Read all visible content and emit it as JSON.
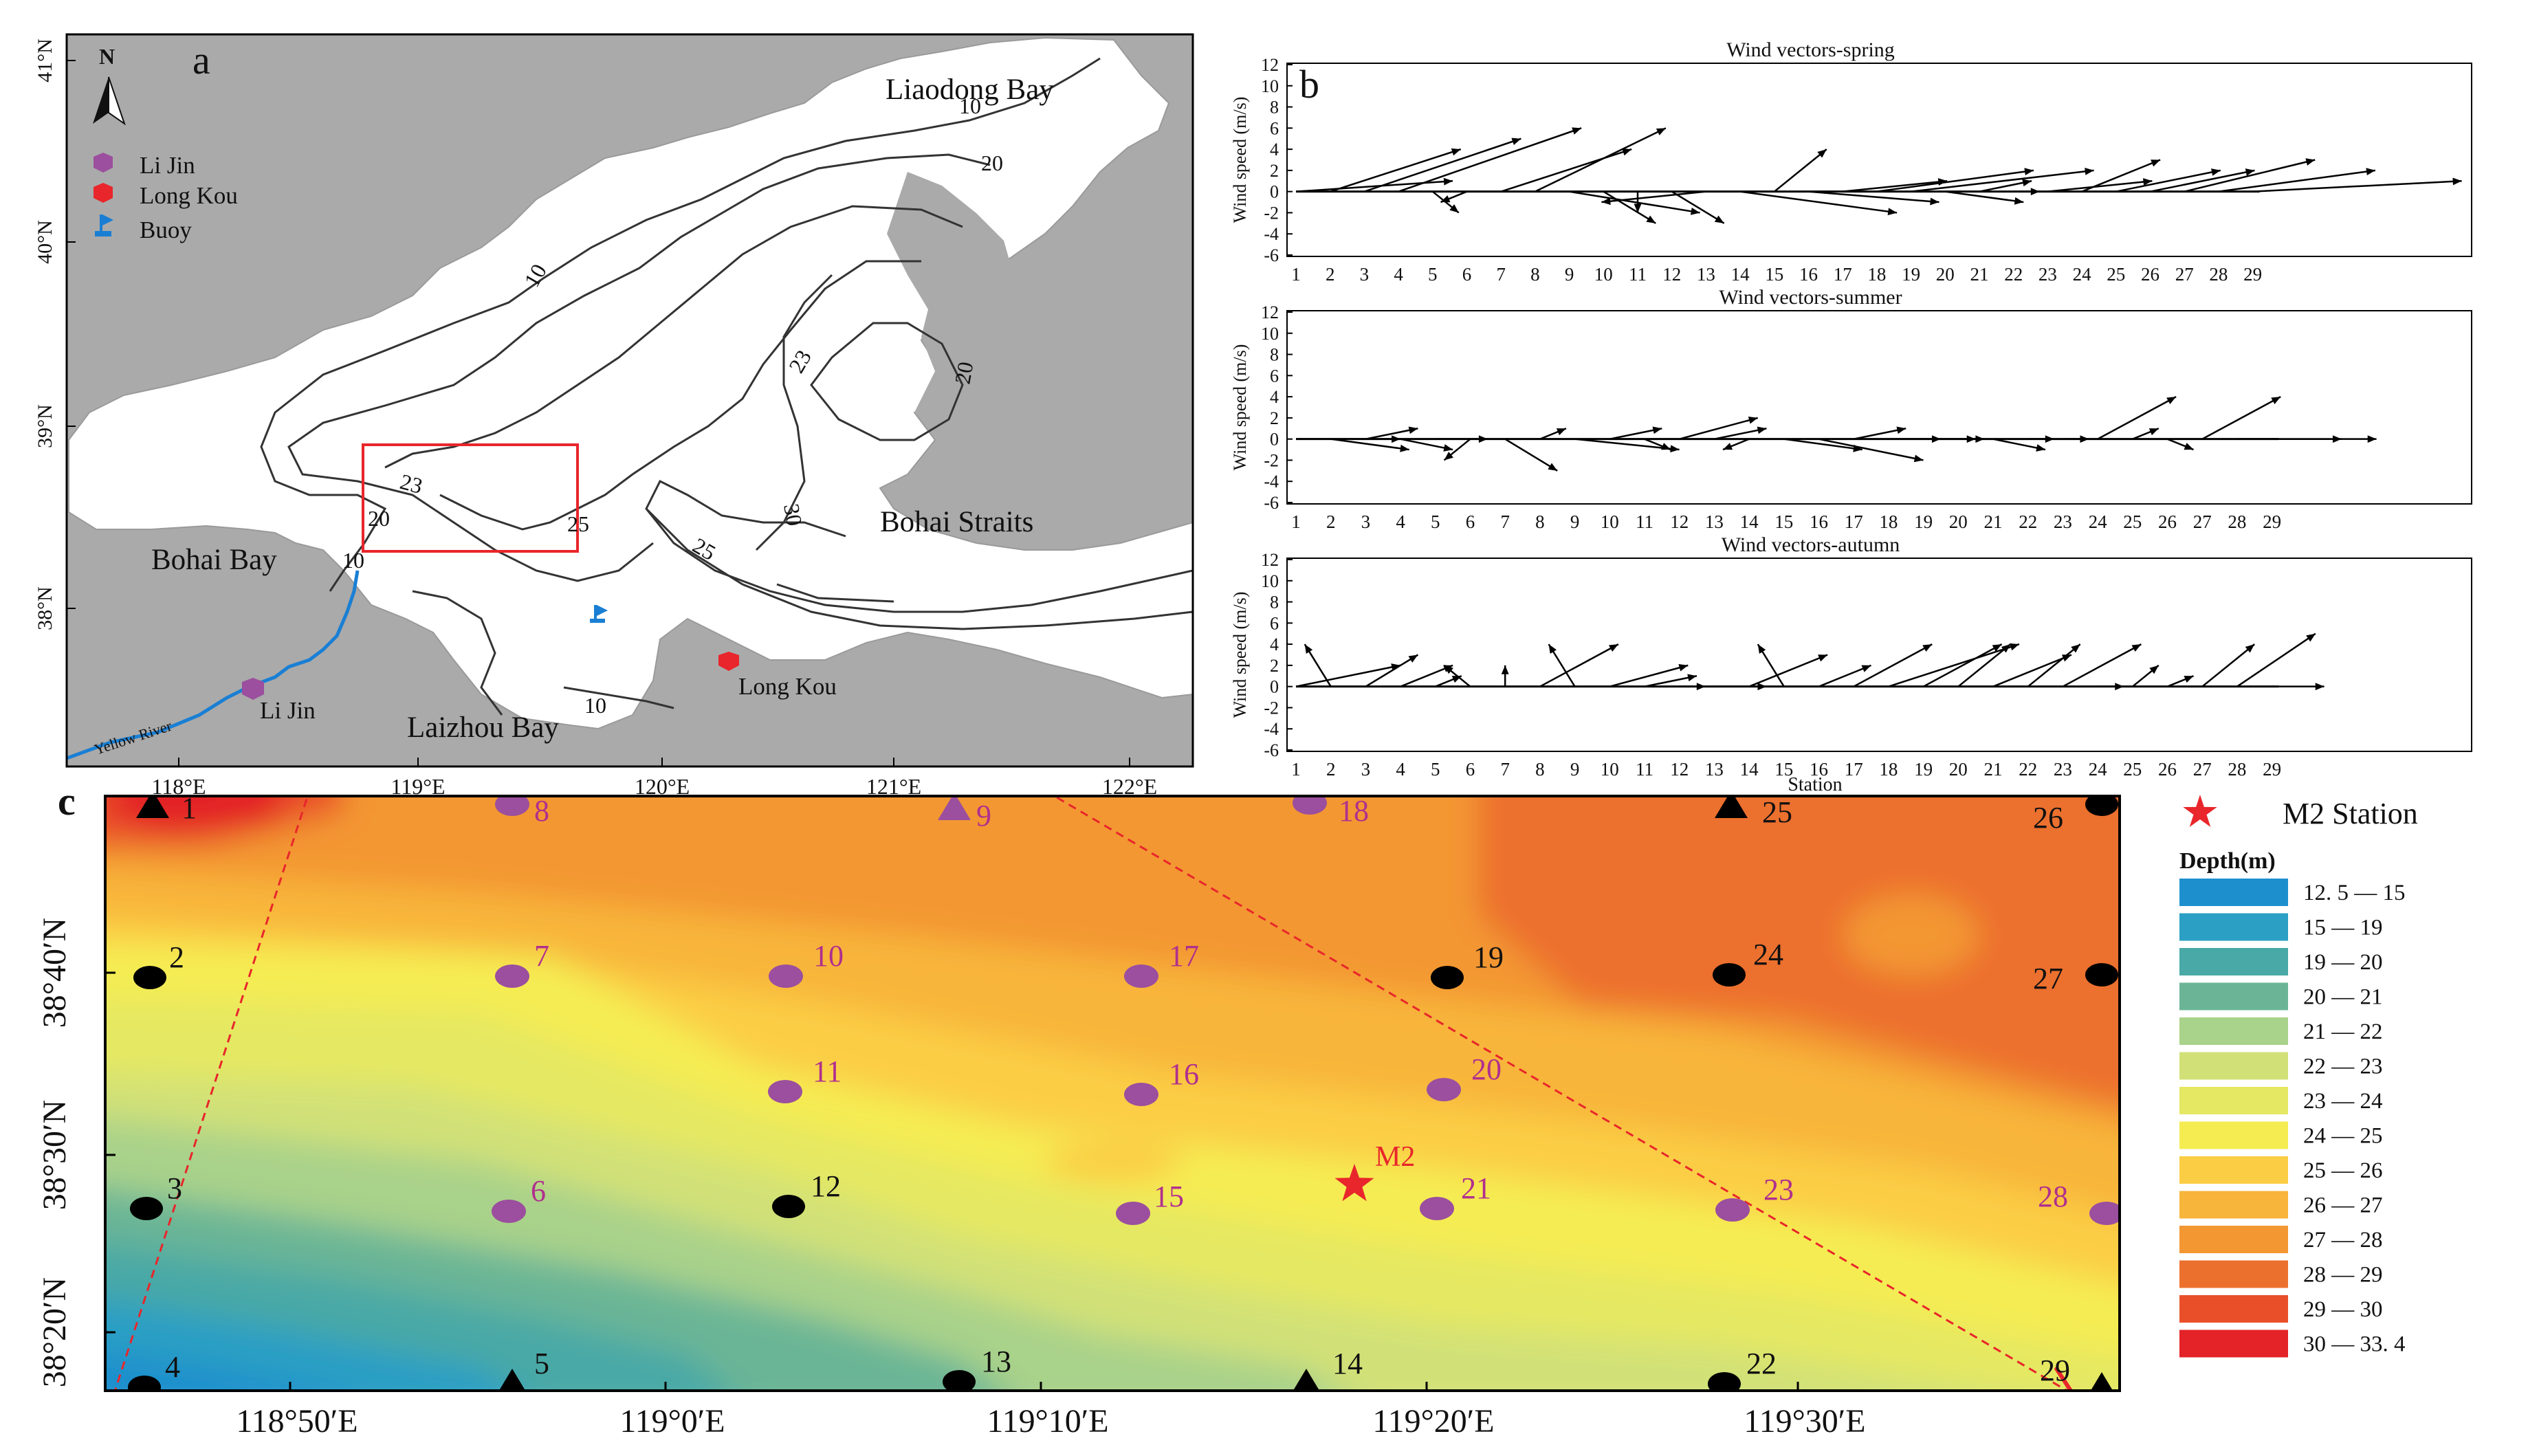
{
  "panel_a": {
    "label": "a",
    "north": "N",
    "places": {
      "liaodong": "Liaodong Bay",
      "bohai_bay": "Bohai Bay",
      "bohai_straits": "Bohai Straits",
      "laizhou": "Laizhou Bay",
      "li_jin": "Li Jin",
      "long_kou": "Long Kou",
      "yellow_river": "Yellow River"
    },
    "legend": {
      "li_jin": "Li Jin",
      "long_kou": "Long Kou",
      "buoy": "Buoy"
    },
    "lat_labels": [
      "41°N",
      "40°N",
      "39°N",
      "38°N"
    ],
    "lon_labels": [
      "118°E",
      "119°E",
      "120°E",
      "121°E",
      "122°E"
    ],
    "contour_labels": [
      "10",
      "20",
      "10",
      "23",
      "20",
      "30",
      "23",
      "20",
      "25",
      "25",
      "10",
      "10"
    ],
    "colors": {
      "land": "#aaaaaa",
      "sea": "#ffffff",
      "box": "#e8262b",
      "li_jin": "#9b4f9e",
      "long_kou": "#e8262b",
      "buoy": "#1a7fd4"
    }
  },
  "panel_b": {
    "label": "b",
    "ylabel": "Wind speed (m/s)",
    "xlabel": "Station",
    "y_ticks": [
      "12",
      "10",
      "8",
      "6",
      "4",
      "2",
      "0",
      "-2",
      "-4",
      "-6"
    ],
    "x_ticks": [
      "1",
      "2",
      "3",
      "4",
      "5",
      "6",
      "7",
      "8",
      "9",
      "10",
      "11",
      "12",
      "13",
      "14",
      "15",
      "16",
      "17",
      "18",
      "19",
      "20",
      "21",
      "22",
      "23",
      "24",
      "25",
      "26",
      "27",
      "28",
      "29"
    ]
  },
  "chart_data": [
    {
      "type": "vector",
      "title": "Wind vectors-spring",
      "ylim": [
        -6,
        12
      ],
      "x": [
        1,
        2,
        3,
        4,
        5,
        6,
        7,
        8,
        9,
        10,
        11,
        12,
        13,
        14,
        15,
        16,
        17,
        18,
        19,
        20,
        21,
        22,
        23,
        24,
        25,
        26,
        27,
        28,
        29
      ],
      "u": [
        6,
        5,
        6,
        7,
        1,
        -1,
        5,
        5,
        5,
        2,
        0,
        2,
        -4,
        6,
        2,
        5,
        4,
        6,
        7,
        3,
        2,
        1,
        4,
        3,
        4,
        4,
        5,
        6,
        8
      ],
      "v": [
        1,
        4,
        5,
        6,
        -2,
        -1,
        4,
        6,
        -2,
        -3,
        -2,
        -3,
        -1,
        -2,
        4,
        -1,
        1,
        2,
        2,
        -1,
        1,
        0,
        1,
        3,
        2,
        2,
        3,
        2,
        1
      ]
    },
    {
      "type": "vector",
      "title": "Wind vectors-summer",
      "ylim": [
        -6,
        12
      ],
      "x": [
        1,
        2,
        3,
        4,
        5,
        6,
        7,
        8,
        9,
        10,
        11,
        12,
        13,
        14,
        15,
        16,
        17,
        18,
        19,
        20,
        21,
        22,
        23,
        24,
        25,
        26,
        27,
        28,
        29
      ],
      "u": [
        4,
        3,
        2,
        2,
        2,
        -1,
        2,
        1,
        4,
        2,
        1,
        3,
        2,
        -1,
        3,
        4,
        2,
        2,
        2,
        1,
        2,
        1,
        1,
        3,
        1,
        1,
        3,
        4,
        4
      ],
      "v": [
        0,
        -1,
        1,
        -1,
        0,
        -2,
        -3,
        1,
        -1,
        1,
        -1,
        2,
        1,
        -1,
        -1,
        -2,
        1,
        0,
        0,
        0,
        -1,
        0,
        0,
        4,
        1,
        -1,
        4,
        0,
        0
      ]
    },
    {
      "type": "vector",
      "title": "Wind vectors-autumn",
      "ylim": [
        -6,
        12
      ],
      "x": [
        1,
        2,
        3,
        4,
        5,
        6,
        7,
        8,
        9,
        10,
        11,
        12,
        13,
        14,
        15,
        16,
        17,
        18,
        19,
        20,
        21,
        22,
        23,
        24,
        25,
        26,
        27,
        28,
        29
      ],
      "u": [
        4,
        -1,
        2,
        2,
        1,
        -1,
        0,
        3,
        -1,
        3,
        2,
        1,
        2,
        3,
        -1,
        2,
        3,
        5,
        3,
        2,
        3,
        2,
        3,
        1,
        1,
        1,
        2,
        3,
        2
      ],
      "v": [
        2,
        4,
        3,
        2,
        1,
        2,
        2,
        4,
        4,
        2,
        1,
        0,
        0,
        3,
        4,
        2,
        4,
        4,
        4,
        4,
        3,
        4,
        4,
        0,
        2,
        1,
        4,
        5,
        0
      ]
    }
  ],
  "panel_c": {
    "label": "c",
    "legend_title": "Depth(m)",
    "m2_label": "M2 Station",
    "m2_marker": "M2",
    "depth_bins": [
      {
        "label": "12. 5   —   15",
        "color": "#1d8fcd"
      },
      {
        "label": "15   —   19",
        "color": "#2b9fc4"
      },
      {
        "label": "19   —   20",
        "color": "#48a9a6"
      },
      {
        "label": "20   —   21",
        "color": "#6bb596"
      },
      {
        "label": "21   —   22",
        "color": "#a9d28a"
      },
      {
        "label": "22   —   23",
        "color": "#d2e177"
      },
      {
        "label": "23   —   24",
        "color": "#e5e862"
      },
      {
        "label": "24   —   25",
        "color": "#f5ec52"
      },
      {
        "label": "25   —   26",
        "color": "#fbcd45"
      },
      {
        "label": "26   —   27",
        "color": "#f8b53b"
      },
      {
        "label": "27   —   28",
        "color": "#f39733"
      },
      {
        "label": "28   —   29",
        "color": "#ec702d"
      },
      {
        "label": "29   —   30",
        "color": "#e9502a"
      },
      {
        "label": "30   —   33. 4",
        "color": "#e32328"
      }
    ],
    "lon_labels": [
      "118°50′E",
      "119°0′E",
      "119°10′E",
      "119°20′E",
      "119°30′E"
    ],
    "lat_labels": [
      "38°40′N",
      "38°30′N",
      "38°20′N"
    ],
    "stations": [
      {
        "id": "1",
        "type": "tri"
      },
      {
        "id": "2",
        "type": "circle"
      },
      {
        "id": "3",
        "type": "circle"
      },
      {
        "id": "4",
        "type": "circle"
      },
      {
        "id": "5",
        "type": "tri"
      },
      {
        "id": "6",
        "type": "purple"
      },
      {
        "id": "7",
        "type": "purple"
      },
      {
        "id": "8",
        "type": "purple"
      },
      {
        "id": "9",
        "type": "ptri"
      },
      {
        "id": "10",
        "type": "purple"
      },
      {
        "id": "11",
        "type": "purple"
      },
      {
        "id": "12",
        "type": "circle"
      },
      {
        "id": "13",
        "type": "circle"
      },
      {
        "id": "14",
        "type": "tri"
      },
      {
        "id": "15",
        "type": "purple"
      },
      {
        "id": "16",
        "type": "purple"
      },
      {
        "id": "17",
        "type": "purple"
      },
      {
        "id": "18",
        "type": "purple"
      },
      {
        "id": "19",
        "type": "circle"
      },
      {
        "id": "20",
        "type": "purple"
      },
      {
        "id": "21",
        "type": "purple"
      },
      {
        "id": "22",
        "type": "circle"
      },
      {
        "id": "23",
        "type": "purple"
      },
      {
        "id": "24",
        "type": "circle"
      },
      {
        "id": "25",
        "type": "tri"
      },
      {
        "id": "26",
        "type": "circle"
      },
      {
        "id": "27",
        "type": "circle"
      },
      {
        "id": "28",
        "type": "purple"
      },
      {
        "id": "29",
        "type": "tri"
      }
    ],
    "colors": {
      "station_purple": "#9b4f9e",
      "station_label": "#b02f8e",
      "m2": "#e8262b",
      "track": "#e8262b"
    }
  }
}
